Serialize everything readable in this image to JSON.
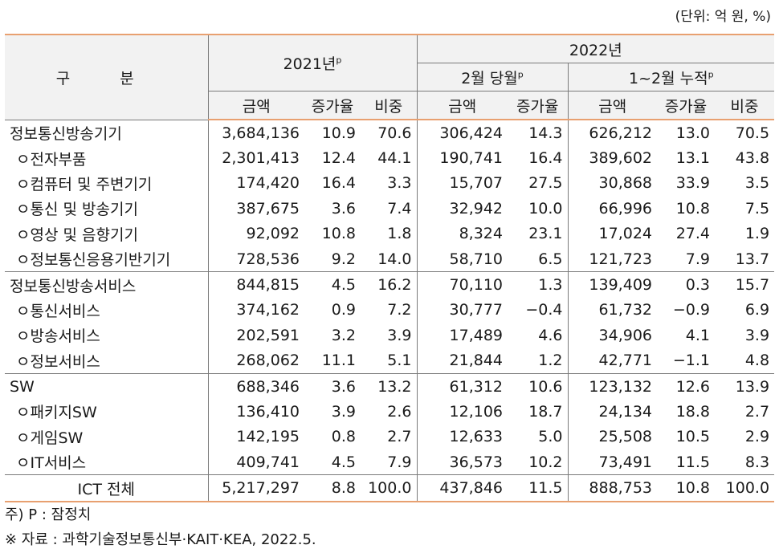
{
  "unit_note": "(단위: 억 원, %)",
  "header": {
    "gubun": "구 분",
    "y2021": "2021년",
    "y2021_sup": "p",
    "y2022": "2022년",
    "feb": "2월 당월",
    "feb_sup": "p",
    "cum": "1~2월 누적",
    "cum_sup": "p",
    "cols": [
      "금액",
      "증가율",
      "비중",
      "금액",
      "증가율",
      "금액",
      "증가율",
      "비중"
    ]
  },
  "rows": [
    {
      "label": "정보통신방송기기",
      "vals": [
        "3,684,136",
        "10.9",
        "70.6",
        "306,424",
        "14.3",
        "626,212",
        "13.0",
        "70.5"
      ]
    },
    {
      "label": "ㅇ전자부품",
      "vals": [
        "2,301,413",
        "12.4",
        "44.1",
        "190,741",
        "16.4",
        "389,602",
        "13.1",
        "43.8"
      ]
    },
    {
      "label": "ㅇ컴퓨터 및 주변기기",
      "vals": [
        "174,420",
        "16.4",
        "3.3",
        "15,707",
        "27.5",
        "30,868",
        "33.9",
        "3.5"
      ]
    },
    {
      "label": "ㅇ통신 및 방송기기",
      "vals": [
        "387,675",
        "3.6",
        "7.4",
        "32,942",
        "10.0",
        "66,996",
        "10.8",
        "7.5"
      ]
    },
    {
      "label": "ㅇ영상 및 음향기기",
      "vals": [
        "92,092",
        "10.8",
        "1.8",
        "8,324",
        "23.1",
        "17,024",
        "27.4",
        "1.9"
      ]
    },
    {
      "label": "ㅇ정보통신응용기반기기",
      "vals": [
        "728,536",
        "9.2",
        "14.0",
        "58,710",
        "6.5",
        "121,723",
        "7.9",
        "13.7"
      ]
    },
    {
      "label": "정보통신방송서비스",
      "vals": [
        "844,815",
        "4.5",
        "16.2",
        "70,110",
        "1.3",
        "139,409",
        "0.3",
        "15.7"
      ]
    },
    {
      "label": "ㅇ통신서비스",
      "vals": [
        "374,162",
        "0.9",
        "7.2",
        "30,777",
        "−0.4",
        "61,732",
        "−0.9",
        "6.9"
      ]
    },
    {
      "label": "ㅇ방송서비스",
      "vals": [
        "202,591",
        "3.2",
        "3.9",
        "17,489",
        "4.6",
        "34,906",
        "4.1",
        "3.9"
      ]
    },
    {
      "label": "ㅇ정보서비스",
      "vals": [
        "268,062",
        "11.1",
        "5.1",
        "21,844",
        "1.2",
        "42,771",
        "−1.1",
        "4.8"
      ]
    },
    {
      "label": "SW",
      "vals": [
        "688,346",
        "3.6",
        "13.2",
        "61,312",
        "10.6",
        "123,132",
        "12.6",
        "13.9"
      ]
    },
    {
      "label": "ㅇ패키지SW",
      "vals": [
        "136,410",
        "3.9",
        "2.6",
        "12,106",
        "18.7",
        "24,134",
        "18.8",
        "2.7"
      ]
    },
    {
      "label": "ㅇ게임SW",
      "vals": [
        "142,195",
        "0.8",
        "2.7",
        "12,633",
        "5.0",
        "25,508",
        "10.5",
        "2.9"
      ]
    },
    {
      "label": "ㅇIT서비스",
      "vals": [
        "409,741",
        "4.5",
        "7.9",
        "36,573",
        "10.2",
        "73,491",
        "11.5",
        "8.3"
      ]
    },
    {
      "label": "ICT 전체",
      "vals": [
        "5,217,297",
        "8.8",
        "100.0",
        "437,846",
        "11.5",
        "888,753",
        "10.8",
        "100.0"
      ]
    }
  ],
  "footnote1": "주) P : 잠정치",
  "footnote2": "※ 자료 : 과학기술정보통신부·KAIT·KEA, 2022.5."
}
